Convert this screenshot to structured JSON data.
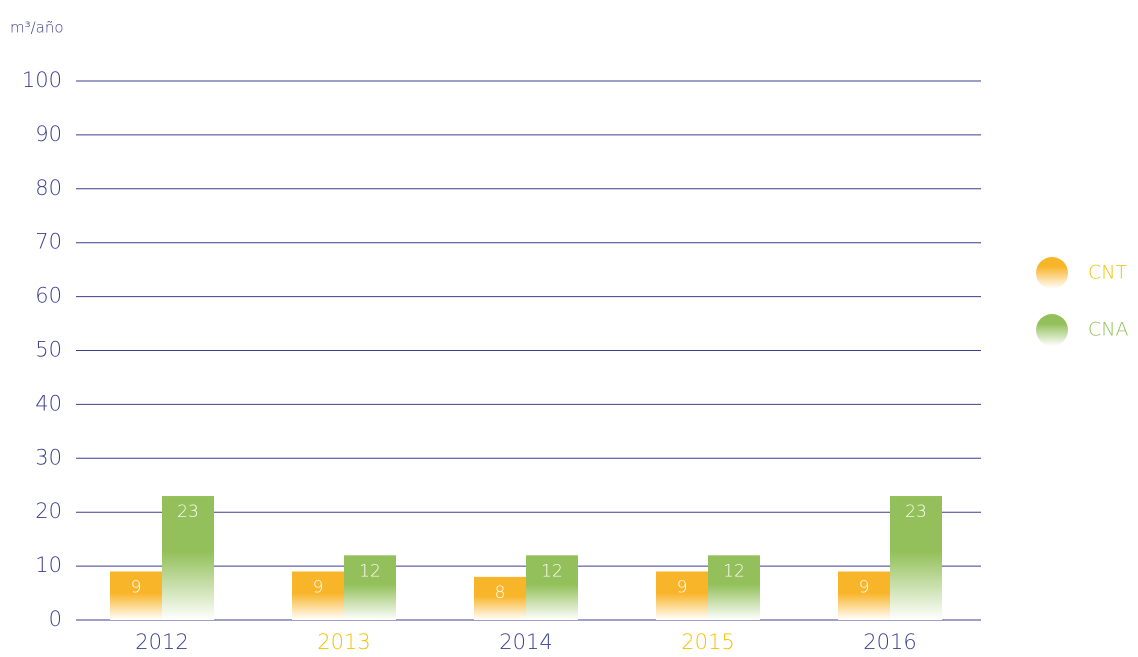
{
  "chart_data": {
    "type": "bar",
    "y_label": "m³/año",
    "categories": [
      "2012",
      "2013",
      "2014",
      "2015",
      "2016"
    ],
    "category_colors": [
      "#3b3f8f",
      "#f2c200",
      "#3b3f8f",
      "#f2c200",
      "#3b3f8f"
    ],
    "series": [
      {
        "name": "CNT",
        "color": "#f9b52a",
        "values": [
          9,
          9,
          8,
          9,
          9
        ]
      },
      {
        "name": "CNA",
        "color": "#93c05a",
        "values": [
          23,
          12,
          12,
          12,
          23
        ]
      }
    ],
    "legend_text_colors": [
      "#f2c200",
      "#93c05a"
    ],
    "ylim": [
      0,
      100
    ],
    "yticks": [
      0,
      10,
      20,
      30,
      40,
      50,
      60,
      70,
      80,
      90,
      100
    ],
    "grid": true,
    "legend": "right"
  }
}
